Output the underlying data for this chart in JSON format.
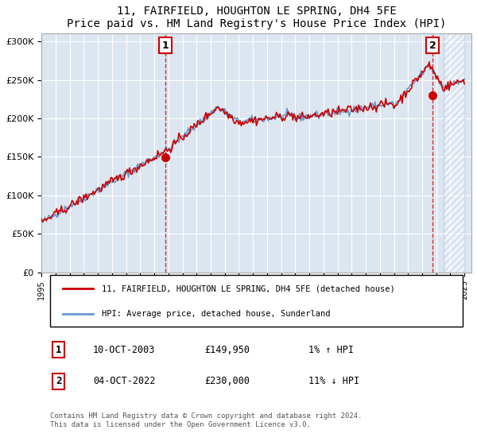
{
  "title": "11, FAIRFIELD, HOUGHTON LE SPRING, DH4 5FE",
  "subtitle": "Price paid vs. HM Land Registry's House Price Index (HPI)",
  "ylabel_ticks": [
    "£0",
    "£50K",
    "£100K",
    "£150K",
    "£200K",
    "£250K",
    "£300K"
  ],
  "ytick_values": [
    0,
    50000,
    100000,
    150000,
    200000,
    250000,
    300000
  ],
  "ylim": [
    0,
    310000
  ],
  "xlim_start": 1995.0,
  "xlim_end": 2025.5,
  "bg_color": "#dce6f0",
  "plot_bg_color": "#dce6f0",
  "red_line_color": "#cc0000",
  "blue_line_color": "#6699cc",
  "hatch_color": "#aabbdd",
  "marker1_x": 2003.78,
  "marker1_y": 149950,
  "marker2_x": 2022.75,
  "marker2_y": 230000,
  "annotation1_label": "1",
  "annotation2_label": "2",
  "legend_label_red": "11, FAIRFIELD, HOUGHTON LE SPRING, DH4 5FE (detached house)",
  "legend_label_blue": "HPI: Average price, detached house, Sunderland",
  "table_row1": [
    "1",
    "10-OCT-2003",
    "£149,950",
    "1% ↑ HPI"
  ],
  "table_row2": [
    "2",
    "04-OCT-2022",
    "£230,000",
    "11% ↓ HPI"
  ],
  "footer": "Contains HM Land Registry data © Crown copyright and database right 2024.\nThis data is licensed under the Open Government Licence v3.0.",
  "grid_color": "#ffffff",
  "hpi_base_value": 70000
}
